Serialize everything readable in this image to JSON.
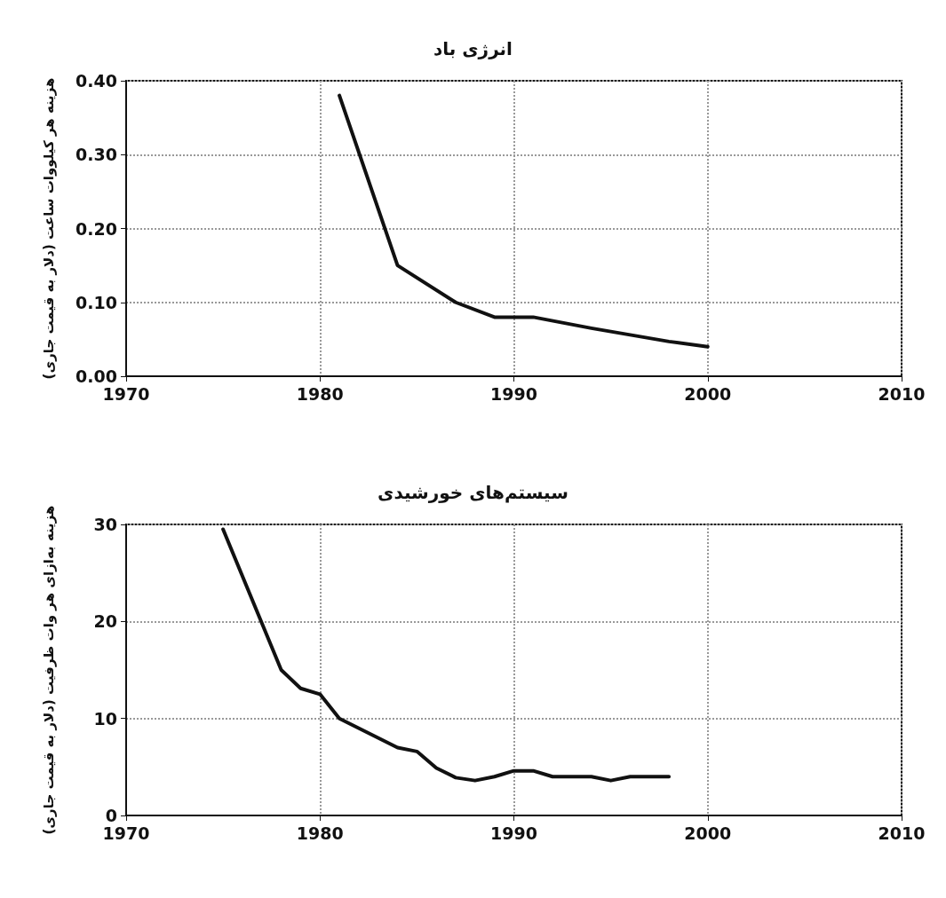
{
  "chart_data": [
    {
      "type": "line",
      "title": "انرژی باد",
      "ylabel": "هزینه هر کیلووات ساعت (دلار به قیمت جاری)",
      "series": [
        {
          "color": "#111111",
          "x": [
            1981,
            1984,
            1987,
            1989,
            1991,
            1994,
            1998,
            2000
          ],
          "values": [
            0.38,
            0.15,
            0.1,
            0.08,
            0.08,
            0.065,
            0.047,
            0.04
          ]
        }
      ],
      "xlim": [
        1970,
        2010
      ],
      "xticks": [
        1970,
        1980,
        1990,
        2000,
        2010
      ],
      "ylim": [
        0,
        0.4
      ],
      "yticks": [
        {
          "value": 0,
          "label": "0.00"
        },
        {
          "value": 0.1,
          "label": "0.10"
        },
        {
          "value": 0.2,
          "label": "0.20"
        },
        {
          "value": 0.3,
          "label": "0.30"
        },
        {
          "value": 0.4,
          "label": "0.40"
        }
      ],
      "grid": true,
      "marker": "none",
      "line_style": "solid"
    },
    {
      "type": "line",
      "title": "سیستم‌های خورشیدی",
      "ylabel": "هزینه به‌ازای هر وات ظرفیت (دلار به قیمت جاری)",
      "series": [
        {
          "color": "#111111",
          "x": [
            1975,
            1978,
            1979,
            1980,
            1981,
            1984,
            1985,
            1986,
            1987,
            1988,
            1989,
            1990,
            1991,
            1992,
            1994,
            1995,
            1996,
            1998
          ],
          "values": [
            29.5,
            15,
            13.1,
            12.5,
            10,
            7,
            6.6,
            4.9,
            3.9,
            3.6,
            4,
            4.6,
            4.6,
            4,
            4,
            3.6,
            4,
            4
          ]
        }
      ],
      "xlim": [
        1970,
        2010
      ],
      "xticks": [
        1970,
        1980,
        1990,
        2000,
        2010
      ],
      "ylim": [
        0,
        30
      ],
      "yticks": [
        0,
        10,
        20,
        30
      ],
      "grid": true,
      "marker": "none",
      "line_style": "solid"
    }
  ]
}
